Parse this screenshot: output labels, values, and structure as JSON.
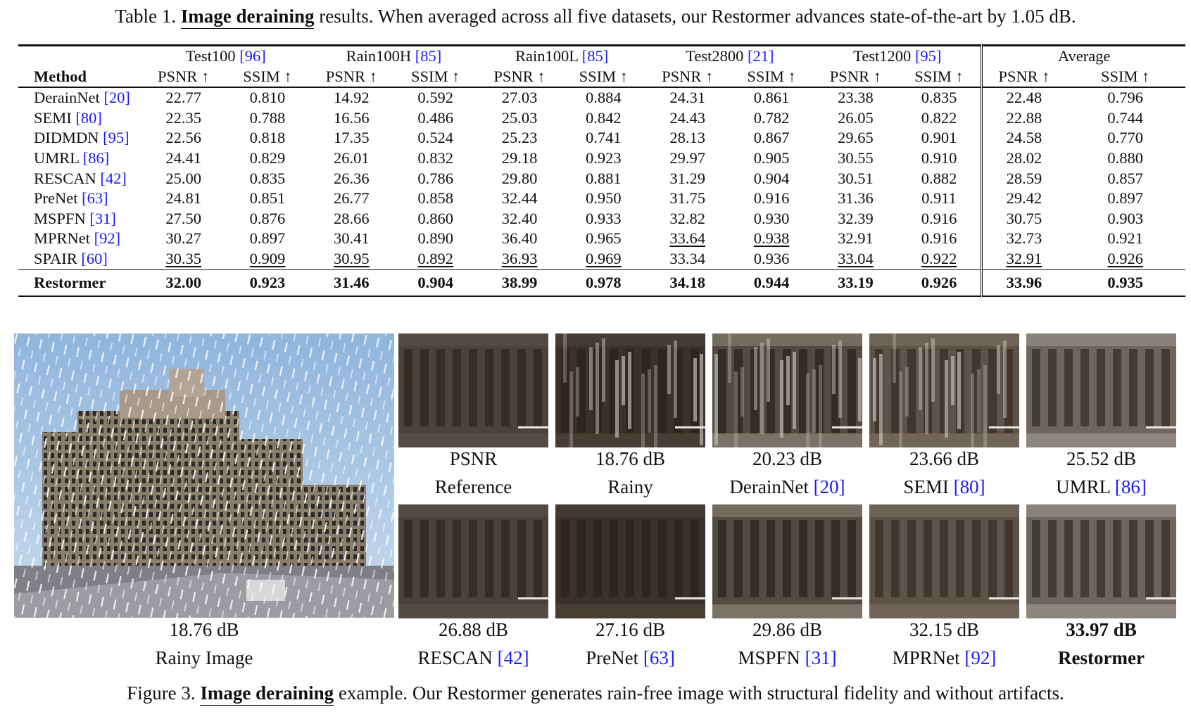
{
  "table": {
    "caption": {
      "prefix": "Table 1.",
      "highlight": "Image deraining",
      "text": "results. When averaged across all five datasets, our Restormer advances state-of-the-art by 1.05 dB."
    },
    "method_header": "Method",
    "datasets": [
      {
        "name": "Test100",
        "ref": "[96]"
      },
      {
        "name": "Rain100H",
        "ref": "[85]"
      },
      {
        "name": "Rain100L",
        "ref": "[85]"
      },
      {
        "name": "Test2800",
        "ref": "[21]"
      },
      {
        "name": "Test1200",
        "ref": "[95]"
      },
      {
        "name": "Average",
        "ref": ""
      }
    ],
    "metric_psnr": "PSNR ↑",
    "metric_ssim": "SSIM ↑",
    "rows": [
      {
        "method": "DerainNet",
        "ref": "[20]",
        "v": [
          "22.77",
          "0.810",
          "14.92",
          "0.592",
          "27.03",
          "0.884",
          "24.31",
          "0.861",
          "23.38",
          "0.835",
          "22.48",
          "0.796"
        ],
        "u": []
      },
      {
        "method": "SEMI",
        "ref": "[80]",
        "v": [
          "22.35",
          "0.788",
          "16.56",
          "0.486",
          "25.03",
          "0.842",
          "24.43",
          "0.782",
          "26.05",
          "0.822",
          "22.88",
          "0.744"
        ],
        "u": []
      },
      {
        "method": "DIDMDN",
        "ref": "[95]",
        "v": [
          "22.56",
          "0.818",
          "17.35",
          "0.524",
          "25.23",
          "0.741",
          "28.13",
          "0.867",
          "29.65",
          "0.901",
          "24.58",
          "0.770"
        ],
        "u": []
      },
      {
        "method": "UMRL",
        "ref": "[86]",
        "v": [
          "24.41",
          "0.829",
          "26.01",
          "0.832",
          "29.18",
          "0.923",
          "29.97",
          "0.905",
          "30.55",
          "0.910",
          "28.02",
          "0.880"
        ],
        "u": []
      },
      {
        "method": "RESCAN",
        "ref": "[42]",
        "v": [
          "25.00",
          "0.835",
          "26.36",
          "0.786",
          "29.80",
          "0.881",
          "31.29",
          "0.904",
          "30.51",
          "0.882",
          "28.59",
          "0.857"
        ],
        "u": []
      },
      {
        "method": "PreNet",
        "ref": "[63]",
        "v": [
          "24.81",
          "0.851",
          "26.77",
          "0.858",
          "32.44",
          "0.950",
          "31.75",
          "0.916",
          "31.36",
          "0.911",
          "29.42",
          "0.897"
        ],
        "u": []
      },
      {
        "method": "MSPFN",
        "ref": "[31]",
        "v": [
          "27.50",
          "0.876",
          "28.66",
          "0.860",
          "32.40",
          "0.933",
          "32.82",
          "0.930",
          "32.39",
          "0.916",
          "30.75",
          "0.903"
        ],
        "u": []
      },
      {
        "method": "MPRNet",
        "ref": "[92]",
        "v": [
          "30.27",
          "0.897",
          "30.41",
          "0.890",
          "36.40",
          "0.965",
          "33.64",
          "0.938",
          "32.91",
          "0.916",
          "32.73",
          "0.921"
        ],
        "u": [
          6,
          7
        ]
      },
      {
        "method": "SPAIR",
        "ref": "[60]",
        "v": [
          "30.35",
          "0.909",
          "30.95",
          "0.892",
          "36.93",
          "0.969",
          "33.34",
          "0.936",
          "33.04",
          "0.922",
          "32.91",
          "0.926"
        ],
        "u": [
          0,
          1,
          2,
          3,
          4,
          5,
          8,
          9,
          10,
          11
        ]
      }
    ],
    "final_row": {
      "method": "Restormer",
      "v": [
        "32.00",
        "0.923",
        "31.46",
        "0.904",
        "38.99",
        "0.978",
        "34.18",
        "0.944",
        "33.19",
        "0.926",
        "33.96",
        "0.935"
      ]
    }
  },
  "figure": {
    "main_image": {
      "psnr": "18.76 dB",
      "label": "Rainy Image"
    },
    "patches": [
      {
        "psnr": "PSNR",
        "name": "Reference",
        "ref": "",
        "bold": false
      },
      {
        "psnr": "18.76 dB",
        "name": "Rainy",
        "ref": "",
        "bold": false
      },
      {
        "psnr": "20.23 dB",
        "name": "DerainNet",
        "ref": "[20]",
        "bold": false
      },
      {
        "psnr": "23.66 dB",
        "name": "SEMI",
        "ref": "[80]",
        "bold": false
      },
      {
        "psnr": "25.52 dB",
        "name": "UMRL",
        "ref": "[86]",
        "bold": false
      },
      {
        "psnr": "26.88 dB",
        "name": "RESCAN",
        "ref": "[42]",
        "bold": false
      },
      {
        "psnr": "27.16 dB",
        "name": "PreNet",
        "ref": "[63]",
        "bold": false
      },
      {
        "psnr": "29.86 dB",
        "name": "MSPFN",
        "ref": "[31]",
        "bold": false
      },
      {
        "psnr": "32.15 dB",
        "name": "MPRNet",
        "ref": "[92]",
        "bold": false
      },
      {
        "psnr": "33.97 dB",
        "name": "Restormer",
        "ref": "",
        "bold": true
      }
    ],
    "caption": {
      "prefix": "Figure 3.",
      "highlight": "Image deraining",
      "text": "example. Our Restormer generates rain-free image with structural fidelity and without artifacts."
    }
  }
}
